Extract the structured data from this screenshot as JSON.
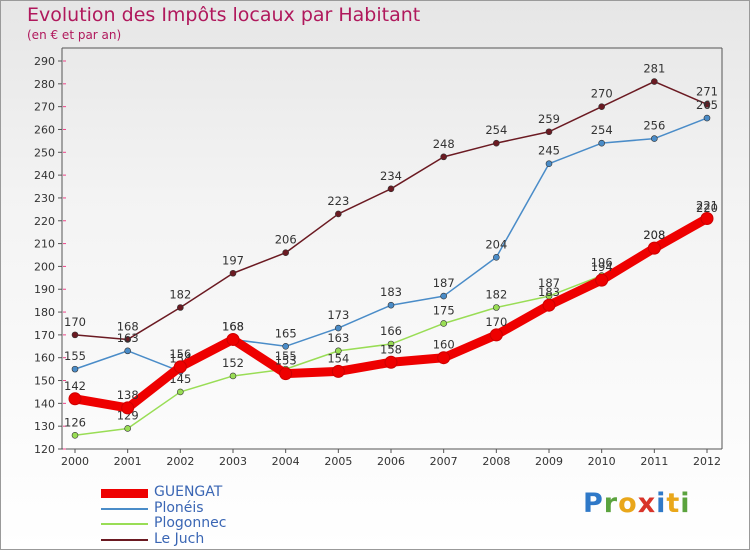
{
  "title": "Evolution des Impôts locaux par Habitant",
  "subtitle": "(en € et par an)",
  "logo_text": "Proxiti",
  "chart_data": {
    "type": "line",
    "title": "Evolution des Impôts locaux par Habitant",
    "ylabel": "(en € et par an)",
    "x": [
      "2000",
      "2001",
      "2002",
      "2003",
      "2004",
      "2005",
      "2006",
      "2007",
      "2008",
      "2009",
      "2010",
      "2011",
      "2012"
    ],
    "ylim": [
      120,
      290
    ],
    "ytick_step": 10,
    "grid": false,
    "legend_position": "bottom-left",
    "series": [
      {
        "name": "Le Juch",
        "color": "#6b1a22",
        "values": [
          170,
          168,
          182,
          197,
          206,
          223,
          234,
          248,
          254,
          259,
          270,
          281,
          271
        ]
      },
      {
        "name": "Plonéis",
        "color": "#4a8cc8",
        "values": [
          155,
          163,
          154,
          168,
          165,
          173,
          183,
          187,
          204,
          245,
          254,
          256,
          265
        ]
      },
      {
        "name": "Plogonnec",
        "color": "#99dd55",
        "values": [
          126,
          129,
          145,
          152,
          155,
          163,
          166,
          175,
          182,
          187,
          196,
          208,
          220
        ]
      },
      {
        "name": "GUENGAT",
        "color": "#ee0000",
        "values": [
          142,
          138,
          156,
          168,
          153,
          154,
          158,
          160,
          170,
          183,
          194,
          208,
          221
        ]
      }
    ],
    "legend": [
      "GUENGAT",
      "Plonéis",
      "Plogonnec",
      "Le Juch"
    ]
  }
}
